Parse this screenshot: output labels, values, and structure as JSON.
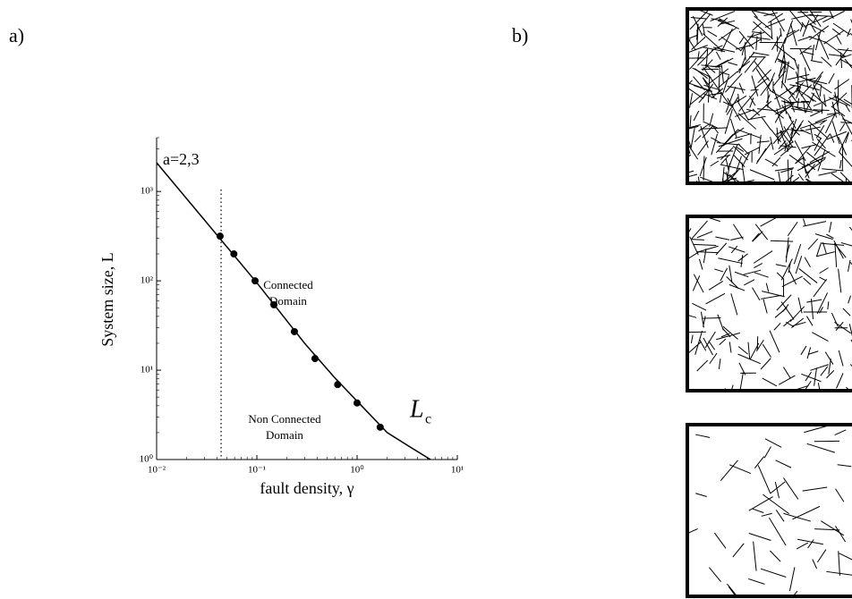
{
  "panel_labels": [
    "a)",
    "b)"
  ],
  "chart_data": {
    "type": "scatter",
    "xlabel": "fault density,  γ",
    "ylabel": "System size,  L",
    "xscale": "log",
    "yscale": "log",
    "xlim": [
      0.01,
      10
    ],
    "ylim": [
      1,
      4000
    ],
    "xticks": [
      {
        "value": 0.01,
        "label": "10⁻²"
      },
      {
        "value": 0.1,
        "label": "10⁻¹"
      },
      {
        "value": 1,
        "label": "10⁰"
      },
      {
        "value": 10,
        "label": "10¹"
      }
    ],
    "yticks": [
      {
        "value": 1,
        "label": "10⁰"
      },
      {
        "value": 10,
        "label": "10¹"
      },
      {
        "value": 100,
        "label": "10²"
      },
      {
        "value": 1000,
        "label": "10³"
      }
    ],
    "color": "#000000",
    "series": [
      {
        "type": "scatter",
        "x": [
          0.043,
          0.059,
          0.096,
          0.148,
          0.237,
          0.38,
          0.64,
          1.0,
          1.7
        ],
        "values": [
          316,
          200,
          100,
          54,
          27,
          13.5,
          6.9,
          4.3,
          2.3
        ]
      },
      {
        "type": "line",
        "x": [
          0.01,
          0.03,
          0.1,
          0.3,
          0.6,
          1,
          2,
          3.5,
          5.4
        ],
        "values": [
          2100,
          480,
          95,
          20,
          8.2,
          4.5,
          2.0,
          1.35,
          1
        ]
      }
    ],
    "vline": 0.044,
    "annotations": [
      {
        "lines": [
          "a=2,3"
        ]
      },
      {
        "lines": [
          "Connected",
          "Domain"
        ]
      },
      {
        "lines": [
          "Non Connected",
          "Domain"
        ]
      },
      {
        "lines": [
          "L"
        ],
        "sub": "c"
      }
    ]
  }
}
